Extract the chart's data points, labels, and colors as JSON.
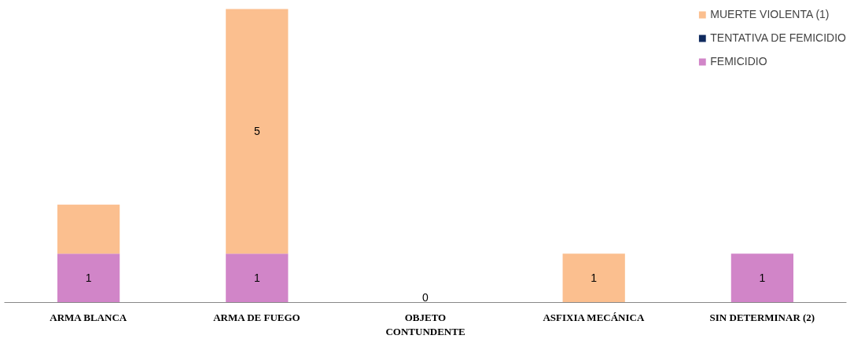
{
  "chart_data": {
    "type": "bar",
    "stacked": true,
    "categories": [
      "ARMA BLANCA",
      "ARMA DE FUEGO",
      "OBJETO\nCONTUNDENTE",
      "ASFIXIA MECÁNICA",
      "SIN DETERMINAR (2)"
    ],
    "series": [
      {
        "name": "FEMICIDIO",
        "color": "#d185c8",
        "values": [
          1,
          1,
          0,
          0,
          1
        ],
        "value_labels": [
          "1",
          "1",
          null,
          null,
          "1"
        ]
      },
      {
        "name": "TENTATIVA DE FEMICIDIO",
        "color": "#0f2a5e",
        "values": [
          0,
          0,
          0,
          0,
          0
        ],
        "value_labels": [
          null,
          null,
          "0",
          null,
          null
        ]
      },
      {
        "name": "MUERTE VIOLENTA (1)",
        "color": "#fbbf8f",
        "values": [
          1,
          5,
          0,
          1,
          0
        ],
        "value_labels": [
          null,
          "5",
          null,
          "1",
          null
        ]
      }
    ],
    "legend": "top right",
    "grid": false
  }
}
